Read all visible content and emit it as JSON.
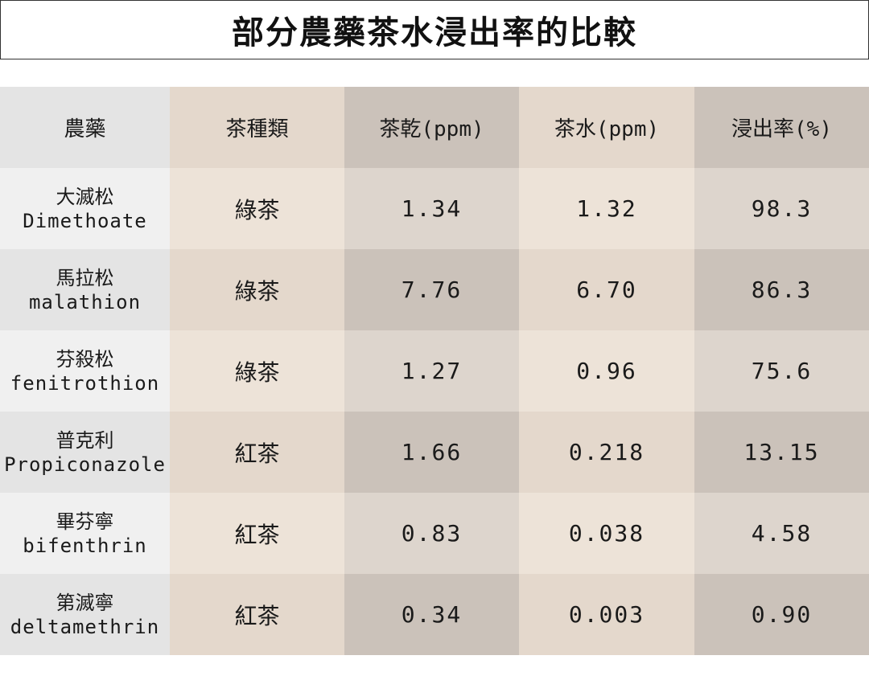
{
  "title": "部分農藥茶水浸出率的比較",
  "colors": {
    "col_bg": [
      "#e4e4e4",
      "#e4d8cc",
      "#cbc2ba",
      "#e4d8cc",
      "#cbc2ba"
    ],
    "col_bg_alt": [
      "#f0f0f0",
      "#ede3d8",
      "#ddd5cd",
      "#ede3d8",
      "#ddd5cd"
    ],
    "text": "#1a1a1a"
  },
  "chart_data": {
    "type": "table",
    "title": "部分農藥茶水浸出率的比較",
    "columns": [
      "農藥",
      "茶種類",
      "茶乾(ppm)",
      "茶水(ppm)",
      "浸出率(%)"
    ],
    "rows": [
      {
        "pesticide_zh": "大滅松",
        "pesticide_en": "Dimethoate",
        "tea": "綠茶",
        "dry": "1.34",
        "brew": "1.32",
        "rate": "98.3"
      },
      {
        "pesticide_zh": "馬拉松",
        "pesticide_en": "malathion",
        "tea": "綠茶",
        "dry": "7.76",
        "brew": "6.70",
        "rate": "86.3"
      },
      {
        "pesticide_zh": "芬殺松",
        "pesticide_en": "fenitrothion",
        "tea": "綠茶",
        "dry": "1.27",
        "brew": "0.96",
        "rate": "75.6"
      },
      {
        "pesticide_zh": "普克利",
        "pesticide_en": "Propiconazole",
        "tea": "紅茶",
        "dry": "1.66",
        "brew": "0.218",
        "rate": "13.15"
      },
      {
        "pesticide_zh": "畢芬寧",
        "pesticide_en": "bifenthrin",
        "tea": "紅茶",
        "dry": "0.83",
        "brew": "0.038",
        "rate": "4.58"
      },
      {
        "pesticide_zh": "第滅寧",
        "pesticide_en": "deltamethrin",
        "tea": "紅茶",
        "dry": "0.34",
        "brew": "0.003",
        "rate": "0.90"
      }
    ]
  }
}
